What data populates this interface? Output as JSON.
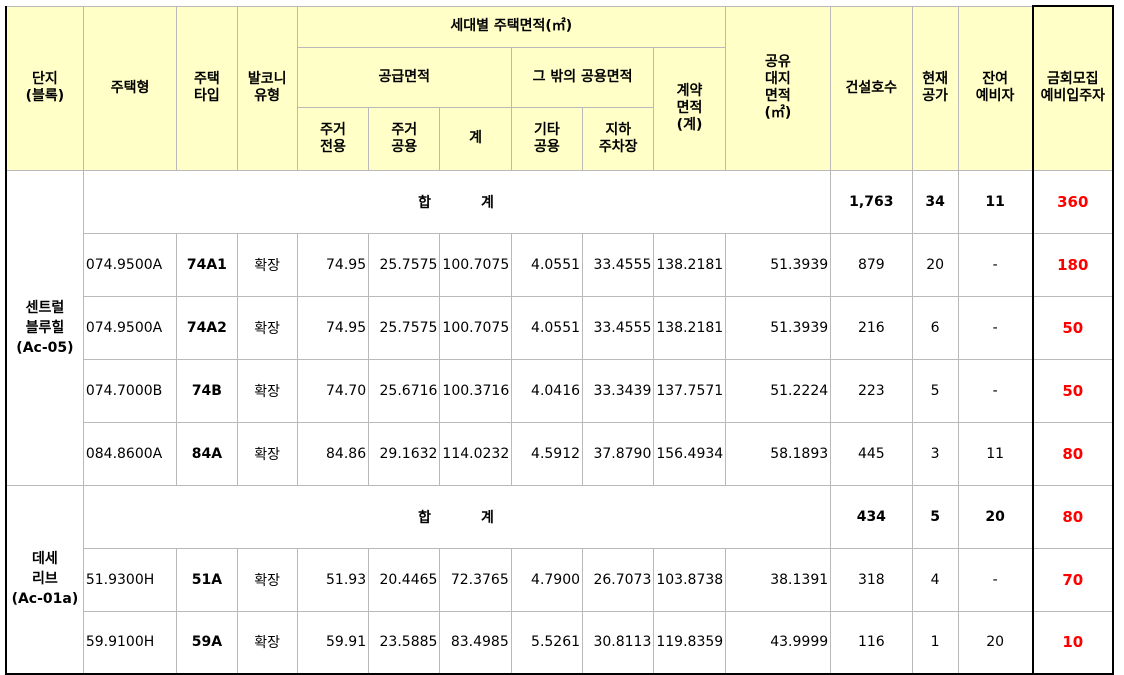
{
  "headers": {
    "complex": "단지\n(블록)",
    "housing_type": "주택형",
    "house_type": "주택\n타입",
    "balcony": "발코니\n유형",
    "area_group": "세대별 주택면적(㎡)",
    "supply_area": "공급면적",
    "other_common": "그 밖의 공용면적",
    "contract_area": "계약\n면적\n(계)",
    "exclusive": "주거\n전용",
    "residential_common": "주거\n공용",
    "subtotal": "계",
    "other_common_etc": "기타\n공용",
    "underground_parking": "지하\n주차장",
    "land_share": "공유\n대지\n면적\n(㎡)",
    "units_built": "건설호수",
    "current_vacant": "현재\n공가",
    "remaining_reserve": "잔여\n예비자",
    "recruit_reserve": "금회모집\n예비입주자"
  },
  "sum_label": [
    "합",
    "계"
  ],
  "complexes": [
    {
      "name": "센트럴\n블루힐\n(Ac-05)",
      "total": {
        "units_built": "1,763",
        "current_vacant": "34",
        "remaining_reserve": "11",
        "recruit_reserve": "360"
      },
      "rows": [
        {
          "housing_type": "074.9500A",
          "house_type": "74A1",
          "balcony": "확장",
          "exclusive": "74.95",
          "residential_common": "25.7575",
          "subtotal": "100.7075",
          "other_common_etc": "4.0551",
          "underground_parking": "33.4555",
          "contract_area": "138.2181",
          "land_share": "51.3939",
          "units_built": "879",
          "current_vacant": "20",
          "remaining_reserve": "-",
          "recruit_reserve": "180"
        },
        {
          "housing_type": "074.9500A",
          "house_type": "74A2",
          "balcony": "확장",
          "exclusive": "74.95",
          "residential_common": "25.7575",
          "subtotal": "100.7075",
          "other_common_etc": "4.0551",
          "underground_parking": "33.4555",
          "contract_area": "138.2181",
          "land_share": "51.3939",
          "units_built": "216",
          "current_vacant": "6",
          "remaining_reserve": "-",
          "recruit_reserve": "50"
        },
        {
          "housing_type": "074.7000B",
          "house_type": "74B",
          "balcony": "확장",
          "exclusive": "74.70",
          "residential_common": "25.6716",
          "subtotal": "100.3716",
          "other_common_etc": "4.0416",
          "underground_parking": "33.3439",
          "contract_area": "137.7571",
          "land_share": "51.2224",
          "units_built": "223",
          "current_vacant": "5",
          "remaining_reserve": "-",
          "recruit_reserve": "50"
        },
        {
          "housing_type": "084.8600A",
          "house_type": "84A",
          "balcony": "확장",
          "exclusive": "84.86",
          "residential_common": "29.1632",
          "subtotal": "114.0232",
          "other_common_etc": "4.5912",
          "underground_parking": "37.8790",
          "contract_area": "156.4934",
          "land_share": "58.1893",
          "units_built": "445",
          "current_vacant": "3",
          "remaining_reserve": "11",
          "recruit_reserve": "80"
        }
      ]
    },
    {
      "name": "데세\n리브\n(Ac-01a)",
      "total": {
        "units_built": "434",
        "current_vacant": "5",
        "remaining_reserve": "20",
        "recruit_reserve": "80"
      },
      "rows": [
        {
          "housing_type": "51.9300H",
          "house_type": "51A",
          "balcony": "확장",
          "exclusive": "51.93",
          "residential_common": "20.4465",
          "subtotal": "72.3765",
          "other_common_etc": "4.7900",
          "underground_parking": "26.7073",
          "contract_area": "103.8738",
          "land_share": "38.1391",
          "units_built": "318",
          "current_vacant": "4",
          "remaining_reserve": "-",
          "recruit_reserve": "70"
        },
        {
          "housing_type": "59.9100H",
          "house_type": "59A",
          "balcony": "확장",
          "exclusive": "59.91",
          "residential_common": "23.5885",
          "subtotal": "83.4985",
          "other_common_etc": "5.5261",
          "underground_parking": "30.8113",
          "contract_area": "119.8359",
          "land_share": "43.9999",
          "units_built": "116",
          "current_vacant": "1",
          "remaining_reserve": "20",
          "recruit_reserve": "10"
        }
      ]
    }
  ],
  "colors": {
    "header_bg": "#ffffc7",
    "highlight_red": "#ff0000",
    "border": "#b9b9b9"
  }
}
